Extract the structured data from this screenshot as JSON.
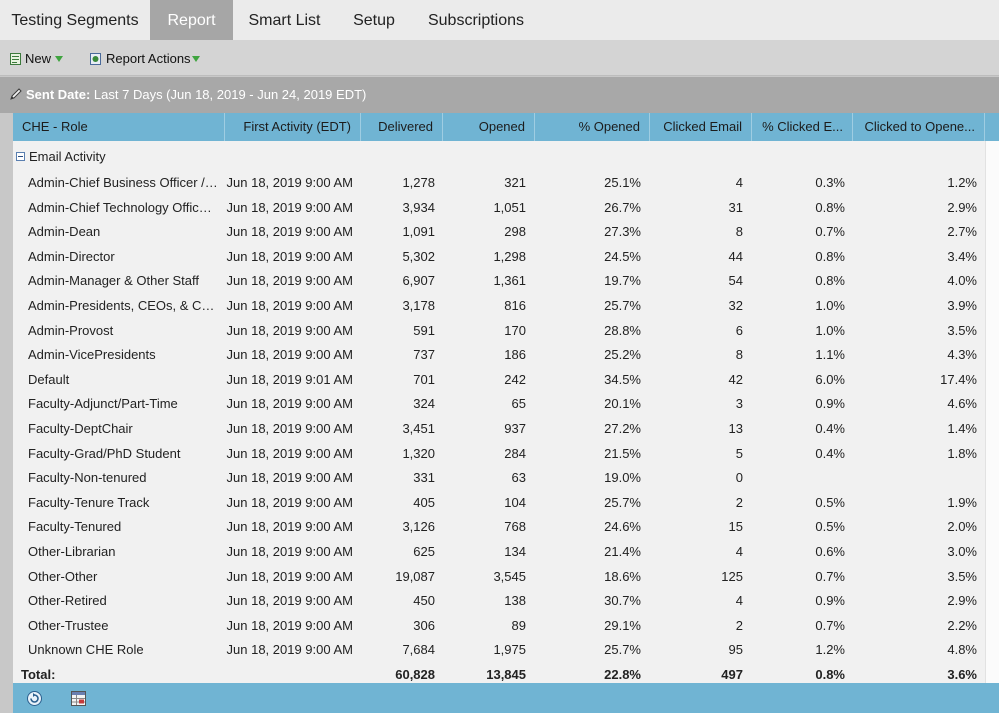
{
  "tabs": [
    {
      "label": "Testing Segments",
      "active": false
    },
    {
      "label": "Report",
      "active": true
    },
    {
      "label": "Smart List",
      "active": false
    },
    {
      "label": "Setup",
      "active": false
    },
    {
      "label": "Subscriptions",
      "active": false
    }
  ],
  "toolbar": {
    "new_label": "New",
    "report_actions_label": "Report Actions",
    "new_icon": "new-page-icon",
    "report_actions_icon": "report-actions-icon",
    "dropdown_color": "#3fa43f"
  },
  "filter": {
    "key": "Sent Date:",
    "value": "Last 7 Days (Jun 18, 2019 - Jun 24, 2019 EDT)",
    "icon": "filter-pencil-icon"
  },
  "columns": [
    "CHE - Role",
    "First Activity (EDT)",
    "Delivered",
    "Opened",
    "% Opened",
    "Clicked Email",
    "% Clicked E...",
    "Clicked to Opene..."
  ],
  "group_label": "Email Activity",
  "rows": [
    [
      "Admin-Chief Business Officer / ...",
      "Jun 18, 2019 9:00 AM",
      "1,278",
      "321",
      "25.1%",
      "4",
      "0.3%",
      "1.2%"
    ],
    [
      "Admin-Chief Technology Officer ...",
      "Jun 18, 2019 9:00 AM",
      "3,934",
      "1,051",
      "26.7%",
      "31",
      "0.8%",
      "2.9%"
    ],
    [
      "Admin-Dean",
      "Jun 18, 2019 9:00 AM",
      "1,091",
      "298",
      "27.3%",
      "8",
      "0.7%",
      "2.7%"
    ],
    [
      "Admin-Director",
      "Jun 18, 2019 9:00 AM",
      "5,302",
      "1,298",
      "24.5%",
      "44",
      "0.8%",
      "3.4%"
    ],
    [
      "Admin-Manager & Other Staff",
      "Jun 18, 2019 9:00 AM",
      "6,907",
      "1,361",
      "19.7%",
      "54",
      "0.8%",
      "4.0%"
    ],
    [
      "Admin-Presidents, CEOs, & Cha...",
      "Jun 18, 2019 9:00 AM",
      "3,178",
      "816",
      "25.7%",
      "32",
      "1.0%",
      "3.9%"
    ],
    [
      "Admin-Provost",
      "Jun 18, 2019 9:00 AM",
      "591",
      "170",
      "28.8%",
      "6",
      "1.0%",
      "3.5%"
    ],
    [
      "Admin-VicePresidents",
      "Jun 18, 2019 9:00 AM",
      "737",
      "186",
      "25.2%",
      "8",
      "1.1%",
      "4.3%"
    ],
    [
      "Default",
      "Jun 18, 2019 9:01 AM",
      "701",
      "242",
      "34.5%",
      "42",
      "6.0%",
      "17.4%"
    ],
    [
      "Faculty-Adjunct/Part-Time",
      "Jun 18, 2019 9:00 AM",
      "324",
      "65",
      "20.1%",
      "3",
      "0.9%",
      "4.6%"
    ],
    [
      "Faculty-DeptChair",
      "Jun 18, 2019 9:00 AM",
      "3,451",
      "937",
      "27.2%",
      "13",
      "0.4%",
      "1.4%"
    ],
    [
      "Faculty-Grad/PhD Student",
      "Jun 18, 2019 9:00 AM",
      "1,320",
      "284",
      "21.5%",
      "5",
      "0.4%",
      "1.8%"
    ],
    [
      "Faculty-Non-tenured",
      "Jun 18, 2019 9:00 AM",
      "331",
      "63",
      "19.0%",
      "0",
      "",
      ""
    ],
    [
      "Faculty-Tenure Track",
      "Jun 18, 2019 9:00 AM",
      "405",
      "104",
      "25.7%",
      "2",
      "0.5%",
      "1.9%"
    ],
    [
      "Faculty-Tenured",
      "Jun 18, 2019 9:00 AM",
      "3,126",
      "768",
      "24.6%",
      "15",
      "0.5%",
      "2.0%"
    ],
    [
      "Other-Librarian",
      "Jun 18, 2019 9:00 AM",
      "625",
      "134",
      "21.4%",
      "4",
      "0.6%",
      "3.0%"
    ],
    [
      "Other-Other",
      "Jun 18, 2019 9:00 AM",
      "19,087",
      "3,545",
      "18.6%",
      "125",
      "0.7%",
      "3.5%"
    ],
    [
      "Other-Retired",
      "Jun 18, 2019 9:00 AM",
      "450",
      "138",
      "30.7%",
      "4",
      "0.9%",
      "2.9%"
    ],
    [
      "Other-Trustee",
      "Jun 18, 2019 9:00 AM",
      "306",
      "89",
      "29.1%",
      "2",
      "0.7%",
      "2.2%"
    ],
    [
      "Unknown CHE Role",
      "Jun 18, 2019 9:00 AM",
      "7,684",
      "1,975",
      "25.7%",
      "95",
      "1.2%",
      "4.8%"
    ]
  ],
  "total": {
    "label": "Total:",
    "values": [
      "",
      "60,828",
      "13,845",
      "22.8%",
      "497",
      "0.8%",
      "3.6%"
    ]
  },
  "footer": {
    "refresh_icon": "refresh-icon",
    "export_icon": "export-grid-icon"
  },
  "colors": {
    "header_blue": "#70b4d3",
    "active_tab": "#a6a6a6"
  }
}
